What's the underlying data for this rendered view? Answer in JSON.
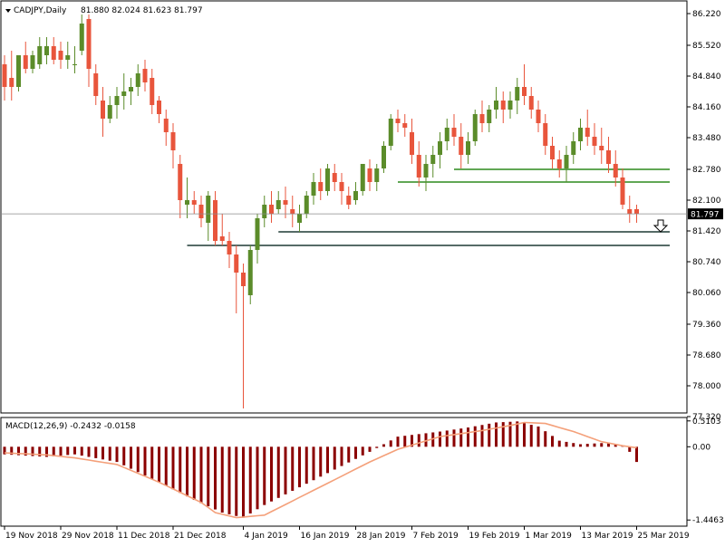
{
  "header": {
    "symbol": "CADJPY,Daily",
    "ohlc": "81.880 82.024 81.623 81.797",
    "indicator": "MACD(12,26,9) -0.2432 -0.0158"
  },
  "colors": {
    "bull": "#5b8c2a",
    "bear": "#e8553c",
    "support": "#1f3a35",
    "resistance": "#2d8a1d",
    "macd_hist": "#8b0000",
    "macd_signal": "#f4a07a",
    "frame": "#000000",
    "price_line": "#8a8a8a",
    "price_tag_bg": "#000000",
    "price_tag_fg": "#ffffff",
    "arrow": "#000000"
  },
  "chart_data": [
    {
      "type": "candlestick",
      "series": [
        {
          "name": "CADJPY"
        }
      ],
      "ylim": [
        77.42,
        86.48
      ],
      "yticks": [
        "86.220",
        "85.520",
        "84.840",
        "84.160",
        "83.480",
        "82.780",
        "82.100",
        "81.420",
        "80.740",
        "80.060",
        "79.360",
        "78.680",
        "78.000",
        "77.320"
      ],
      "ytick_values": [
        86.22,
        85.52,
        84.84,
        84.16,
        83.48,
        82.78,
        82.1,
        81.42,
        80.74,
        80.06,
        79.36,
        78.68,
        78.0,
        77.32
      ],
      "xticks": [
        "19 Nov 2018",
        "29 Nov 2018",
        "11 Dec 2018",
        "21 Dec 2018",
        "4 Jan 2019",
        "16 Jan 2019",
        "28 Jan 2019",
        "7 Feb 2019",
        "19 Feb 2019",
        "1 Mar 2019",
        "13 Mar 2019",
        "25 Mar 2019"
      ],
      "xtick_index": [
        0,
        8,
        16,
        24,
        34,
        42,
        50,
        58,
        66,
        74,
        82,
        90
      ],
      "last_price": 81.797,
      "last_price_label": "81.797",
      "candles": [
        [
          85.1,
          85.3,
          84.3,
          84.6
        ],
        [
          84.8,
          85.4,
          84.3,
          84.6
        ],
        [
          84.6,
          85.3,
          84.5,
          85.3
        ],
        [
          85.3,
          85.6,
          84.9,
          85.0
        ],
        [
          85.0,
          85.4,
          84.9,
          85.3
        ],
        [
          85.1,
          85.7,
          85.0,
          85.5
        ],
        [
          85.3,
          85.7,
          85.1,
          85.5
        ],
        [
          85.5,
          85.7,
          85.1,
          85.2
        ],
        [
          85.4,
          85.6,
          85.0,
          85.2
        ],
        [
          85.2,
          85.6,
          85.0,
          85.3
        ],
        [
          85.1,
          85.5,
          84.9,
          85.1
        ],
        [
          85.4,
          86.2,
          85.3,
          86.0
        ],
        [
          86.1,
          86.2,
          84.6,
          85.0
        ],
        [
          84.9,
          85.1,
          84.2,
          84.4
        ],
        [
          84.3,
          84.6,
          83.5,
          83.9
        ],
        [
          83.9,
          84.4,
          83.8,
          84.2
        ],
        [
          84.2,
          84.6,
          83.9,
          84.4
        ],
        [
          84.4,
          84.9,
          84.1,
          84.5
        ],
        [
          84.5,
          84.8,
          84.2,
          84.6
        ],
        [
          84.6,
          85.1,
          84.4,
          84.9
        ],
        [
          85.0,
          85.2,
          84.5,
          84.7
        ],
        [
          84.8,
          85.0,
          84.0,
          84.2
        ],
        [
          84.3,
          84.4,
          83.8,
          84.0
        ],
        [
          83.9,
          84.1,
          83.3,
          83.6
        ],
        [
          83.6,
          83.8,
          82.8,
          83.2
        ],
        [
          82.9,
          83.1,
          81.7,
          82.1
        ],
        [
          82.0,
          82.6,
          81.7,
          82.1
        ],
        [
          82.1,
          82.3,
          81.8,
          82.0
        ],
        [
          82.0,
          82.2,
          81.5,
          81.7
        ],
        [
          81.6,
          82.3,
          81.2,
          82.2
        ],
        [
          82.1,
          82.3,
          81.1,
          81.2
        ],
        [
          81.3,
          81.8,
          81.1,
          81.2
        ],
        [
          81.2,
          81.4,
          80.6,
          80.9
        ],
        [
          80.9,
          81.1,
          79.6,
          80.5
        ],
        [
          80.5,
          80.7,
          77.5,
          80.2
        ],
        [
          80.0,
          81.1,
          79.8,
          81.0
        ],
        [
          81.0,
          81.8,
          80.7,
          81.7
        ],
        [
          81.7,
          82.2,
          81.5,
          82.0
        ],
        [
          82.0,
          82.3,
          81.6,
          81.8
        ],
        [
          81.9,
          82.3,
          81.8,
          82.1
        ],
        [
          82.1,
          82.4,
          81.7,
          82.0
        ],
        [
          81.9,
          82.2,
          81.5,
          81.8
        ],
        [
          81.6,
          82.0,
          81.4,
          81.8
        ],
        [
          81.8,
          82.3,
          81.7,
          82.2
        ],
        [
          82.2,
          82.7,
          82.0,
          82.5
        ],
        [
          82.5,
          82.8,
          82.1,
          82.3
        ],
        [
          82.3,
          82.9,
          82.2,
          82.8
        ],
        [
          82.7,
          82.9,
          82.3,
          82.5
        ],
        [
          82.5,
          82.7,
          82.0,
          82.3
        ],
        [
          82.2,
          82.4,
          81.9,
          82.0
        ],
        [
          82.1,
          82.5,
          82.0,
          82.3
        ],
        [
          82.3,
          82.9,
          82.2,
          82.9
        ],
        [
          82.8,
          83.0,
          82.3,
          82.5
        ],
        [
          82.5,
          82.9,
          82.3,
          82.8
        ],
        [
          82.8,
          83.4,
          82.7,
          83.3
        ],
        [
          83.3,
          84.0,
          83.2,
          83.9
        ],
        [
          83.9,
          84.1,
          83.6,
          83.8
        ],
        [
          83.8,
          84.0,
          83.5,
          83.7
        ],
        [
          83.6,
          83.9,
          82.9,
          83.1
        ],
        [
          83.1,
          83.4,
          82.4,
          82.6
        ],
        [
          82.6,
          83.1,
          82.3,
          82.9
        ],
        [
          82.9,
          83.3,
          82.6,
          83.1
        ],
        [
          83.1,
          83.6,
          82.8,
          83.4
        ],
        [
          83.4,
          83.9,
          83.2,
          83.7
        ],
        [
          83.7,
          84.0,
          83.3,
          83.5
        ],
        [
          83.5,
          83.8,
          82.8,
          83.1
        ],
        [
          83.1,
          83.6,
          82.9,
          83.4
        ],
        [
          83.4,
          84.1,
          83.3,
          84.0
        ],
        [
          84.0,
          84.3,
          83.6,
          83.8
        ],
        [
          83.8,
          84.2,
          83.6,
          84.1
        ],
        [
          84.1,
          84.6,
          83.9,
          84.3
        ],
        [
          84.3,
          84.5,
          83.8,
          84.1
        ],
        [
          84.1,
          84.5,
          83.9,
          84.3
        ],
        [
          84.3,
          84.8,
          84.0,
          84.6
        ],
        [
          84.6,
          85.1,
          84.2,
          84.4
        ],
        [
          84.4,
          84.6,
          83.9,
          84.1
        ],
        [
          84.1,
          84.3,
          83.6,
          83.8
        ],
        [
          83.8,
          84.0,
          83.1,
          83.3
        ],
        [
          83.3,
          83.5,
          82.8,
          83.0
        ],
        [
          83.0,
          83.2,
          82.6,
          82.8
        ],
        [
          82.8,
          83.3,
          82.5,
          83.1
        ],
        [
          83.1,
          83.6,
          82.9,
          83.4
        ],
        [
          83.4,
          83.9,
          83.2,
          83.7
        ],
        [
          83.7,
          84.1,
          83.3,
          83.5
        ],
        [
          83.5,
          83.8,
          83.1,
          83.3
        ],
        [
          83.3,
          83.7,
          82.9,
          83.2
        ],
        [
          83.2,
          83.5,
          82.7,
          82.9
        ],
        [
          82.9,
          83.2,
          82.4,
          82.6
        ],
        [
          82.6,
          82.8,
          81.9,
          82.0
        ],
        [
          81.9,
          82.2,
          81.6,
          81.8
        ],
        [
          81.9,
          82.0,
          81.6,
          81.8
        ]
      ],
      "levels": [
        {
          "role": "resistance",
          "value": 82.78,
          "from_index": 64
        },
        {
          "role": "resistance",
          "value": 82.5,
          "from_index": 56
        },
        {
          "role": "support",
          "value": 81.4,
          "from_index": 39
        },
        {
          "role": "support",
          "value": 81.1,
          "from_index": 26
        }
      ]
    },
    {
      "type": "bar",
      "series": [
        {
          "name": "histogram"
        },
        {
          "name": "signal"
        }
      ],
      "ylim": [
        -1.55,
        0.56
      ],
      "yticks": [
        "0.5103",
        "0.00",
        "-1.4463"
      ],
      "ytick_values": [
        0.5103,
        0.0,
        -1.4463
      ],
      "histogram_anchors": [
        [
          0,
          -0.15
        ],
        [
          6,
          -0.2
        ],
        [
          10,
          -0.15
        ],
        [
          16,
          -0.3
        ],
        [
          22,
          -0.7
        ],
        [
          27,
          -1.05
        ],
        [
          31,
          -1.3
        ],
        [
          34,
          -1.4
        ],
        [
          37,
          -1.15
        ],
        [
          42,
          -0.8
        ],
        [
          47,
          -0.45
        ],
        [
          52,
          -0.1
        ],
        [
          56,
          0.2
        ],
        [
          62,
          0.3
        ],
        [
          66,
          0.38
        ],
        [
          70,
          0.48
        ],
        [
          73,
          0.5
        ],
        [
          76,
          0.4
        ],
        [
          79,
          0.12
        ],
        [
          82,
          0.05
        ],
        [
          86,
          0.08
        ],
        [
          88,
          0.02
        ],
        [
          89,
          -0.1
        ],
        [
          90,
          -0.3
        ]
      ],
      "signal_anchors": [
        [
          0,
          -0.12
        ],
        [
          6,
          -0.16
        ],
        [
          10,
          -0.22
        ],
        [
          16,
          -0.35
        ],
        [
          22,
          -0.7
        ],
        [
          28,
          -1.1
        ],
        [
          30,
          -1.3
        ],
        [
          33,
          -1.4
        ],
        [
          37,
          -1.35
        ],
        [
          42,
          -1.0
        ],
        [
          47,
          -0.65
        ],
        [
          52,
          -0.3
        ],
        [
          56,
          -0.05
        ],
        [
          62,
          0.2
        ],
        [
          68,
          0.32
        ],
        [
          72,
          0.42
        ],
        [
          74,
          0.48
        ],
        [
          77,
          0.46
        ],
        [
          81,
          0.3
        ],
        [
          85,
          0.1
        ],
        [
          88,
          0.02
        ],
        [
          90,
          -0.02
        ]
      ]
    }
  ]
}
